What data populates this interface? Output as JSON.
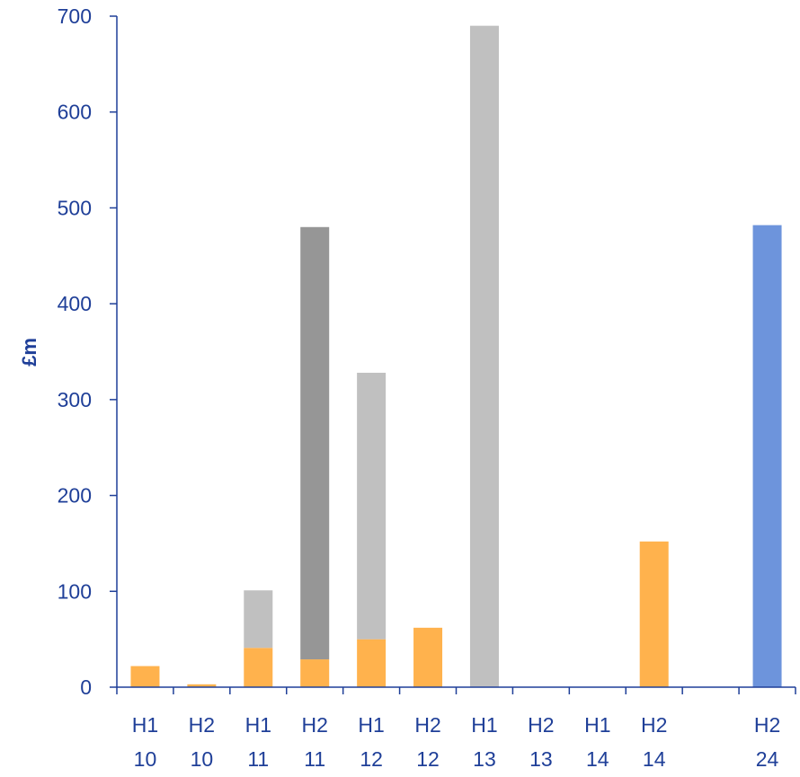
{
  "chart_data": {
    "type": "bar",
    "stacked": true,
    "title": "",
    "xlabel": "",
    "ylabel": "£m",
    "ylim": [
      0,
      700
    ],
    "yticks": [
      0,
      100,
      200,
      300,
      400,
      500,
      600,
      700
    ],
    "grid": false,
    "legend": "none",
    "categories": [
      [
        "H1",
        "10"
      ],
      [
        "H2",
        "10"
      ],
      [
        "H1",
        "11"
      ],
      [
        "H2",
        "11"
      ],
      [
        "H1",
        "12"
      ],
      [
        "H2",
        "12"
      ],
      [
        "H1",
        "13"
      ],
      [
        "H2",
        "13"
      ],
      [
        "H1",
        "14"
      ],
      [
        "H2",
        "14"
      ],
      [
        "",
        ""
      ],
      [
        "H2",
        "24"
      ]
    ],
    "series": [
      {
        "color": "#ffb24d",
        "values": [
          22,
          3,
          41,
          29,
          50,
          62,
          0,
          0,
          0,
          152,
          0,
          0
        ]
      },
      {
        "color": "#c0c0c0",
        "values": [
          0,
          0,
          60,
          0,
          278,
          0,
          690,
          0,
          0,
          0,
          0,
          0
        ]
      },
      {
        "color": "#969696",
        "values": [
          0,
          0,
          0,
          451,
          0,
          0,
          0,
          0,
          0,
          0,
          0,
          0
        ]
      },
      {
        "color": "#6d94dc",
        "values": [
          0,
          0,
          0,
          0,
          0,
          0,
          0,
          0,
          0,
          0,
          0,
          482
        ]
      }
    ],
    "axis_color": "#1f3f98"
  }
}
